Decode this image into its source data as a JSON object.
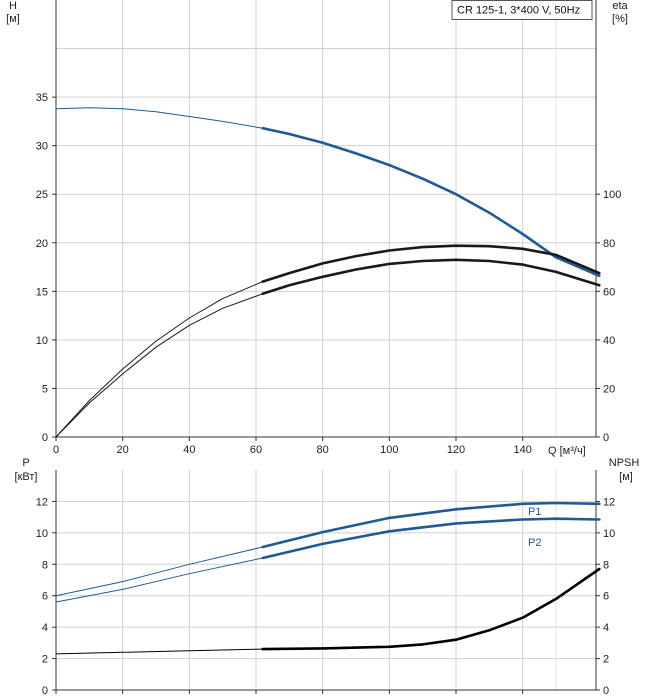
{
  "chart_data": [
    {
      "type": "line",
      "panel": "head-efficiency",
      "legend": "CR 125-1, 3*400 V, 50Hz",
      "legend_position": "top-right",
      "grid": true,
      "x_axis": {
        "label": "Q [м³/ч]",
        "min": 0,
        "max": 162,
        "ticks": [
          0,
          20,
          40,
          60,
          80,
          100,
          120,
          140
        ]
      },
      "y_left": {
        "label": "H",
        "unit": "[м]",
        "min": 0,
        "max": 45,
        "ticks": [
          0,
          5,
          10,
          15,
          20,
          25,
          30,
          35
        ]
      },
      "y_right": {
        "label": "eta",
        "unit": "[%]",
        "min": 0,
        "max": 180,
        "ticks": [
          0,
          20,
          40,
          60,
          80,
          100
        ]
      },
      "series": [
        {
          "axis": "left",
          "color": "#1f5a96",
          "operating_range_from": 62,
          "x": [
            0,
            10,
            20,
            30,
            40,
            50,
            62,
            70,
            80,
            90,
            100,
            110,
            120,
            130,
            140,
            150,
            163
          ],
          "y": [
            33.8,
            33.9,
            33.8,
            33.5,
            33.0,
            32.5,
            31.8,
            31.2,
            30.3,
            29.2,
            28.0,
            26.6,
            25.0,
            23.1,
            20.9,
            18.5,
            16.6
          ]
        },
        {
          "axis": "right",
          "color": "#1a1a1a",
          "operating_range_from": 62,
          "x": [
            0,
            10,
            20,
            30,
            40,
            50,
            62,
            70,
            80,
            90,
            100,
            110,
            120,
            130,
            140,
            150,
            163
          ],
          "y": [
            0,
            14,
            26,
            37,
            46,
            53,
            59,
            62.5,
            66,
            69,
            71.3,
            72.5,
            73,
            72.5,
            71,
            68,
            62.5
          ]
        },
        {
          "axis": "right",
          "color": "#1a1a1a",
          "operating_range_from": 62,
          "x": [
            0,
            10,
            20,
            30,
            40,
            50,
            62,
            70,
            80,
            90,
            100,
            110,
            120,
            130,
            140,
            150,
            163
          ],
          "y": [
            0,
            15,
            28,
            39.5,
            49,
            57,
            64,
            67.5,
            71.5,
            74.5,
            76.8,
            78.2,
            78.8,
            78.6,
            77.5,
            75,
            67.5
          ]
        }
      ]
    },
    {
      "type": "line",
      "panel": "power-npsh",
      "grid": true,
      "y_left": {
        "label": "P",
        "unit": "[кВт]",
        "min": 0,
        "max": 14,
        "ticks": [
          0,
          2,
          4,
          6,
          8,
          10,
          12
        ]
      },
      "y_right": {
        "label": "NPSH",
        "unit": "[м]",
        "min": 0,
        "max": 14,
        "ticks": [
          0,
          2,
          4,
          6,
          8,
          10,
          12
        ]
      },
      "series": [
        {
          "name": "P1",
          "axis": "left",
          "color": "#1f5a96",
          "operating_range_from": 62,
          "x": [
            0,
            20,
            40,
            62,
            80,
            100,
            120,
            140,
            150,
            163
          ],
          "y": [
            6.0,
            6.9,
            8.0,
            9.1,
            10.05,
            10.95,
            11.5,
            11.85,
            11.9,
            11.85
          ]
        },
        {
          "name": "P2",
          "axis": "left",
          "color": "#1f5a96",
          "operating_range_from": 62,
          "x": [
            0,
            20,
            40,
            62,
            80,
            100,
            120,
            140,
            150,
            163
          ],
          "y": [
            5.6,
            6.4,
            7.4,
            8.4,
            9.3,
            10.1,
            10.6,
            10.85,
            10.9,
            10.85
          ]
        },
        {
          "name": "NPSH",
          "axis": "right",
          "color": "#000000",
          "operating_range_from": 62,
          "x": [
            0,
            20,
            40,
            62,
            80,
            100,
            110,
            120,
            130,
            140,
            150,
            163
          ],
          "y": [
            2.3,
            2.4,
            2.5,
            2.6,
            2.65,
            2.75,
            2.9,
            3.2,
            3.8,
            4.6,
            5.8,
            7.7
          ]
        }
      ]
    }
  ]
}
